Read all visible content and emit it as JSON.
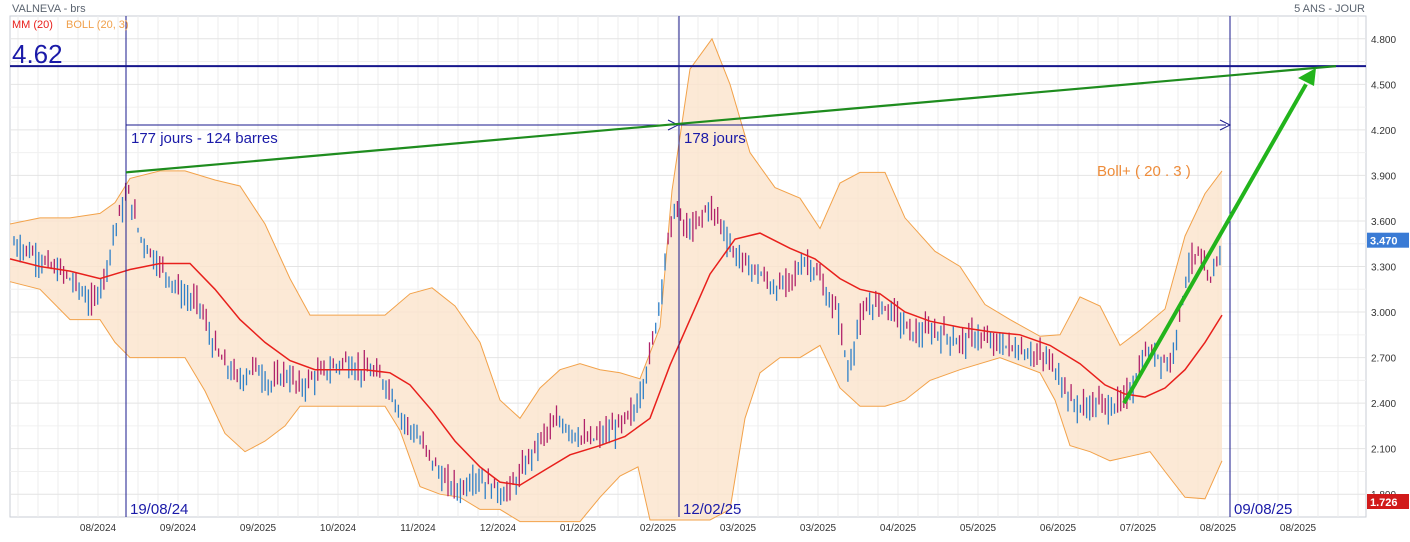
{
  "header": {
    "symbol_label": "VALNEVA - brs",
    "period_label": "5 ANS - JOUR",
    "legend": [
      {
        "label": "MM (20)",
        "color": "#e8201c"
      },
      {
        "label": "BOLL (20, 3)",
        "color": "#f0a04b"
      }
    ]
  },
  "chart_data": {
    "type": "ohlc",
    "ylim": [
      1.65,
      4.95
    ],
    "y_ticks": [
      "4.800",
      "4.500",
      "4.200",
      "3.900",
      "3.600",
      "3.300",
      "3.000",
      "2.700",
      "2.400",
      "2.100",
      "1.800"
    ],
    "x_ticks": [
      "08/2024",
      "09/2024",
      "09/2025",
      "10/2024",
      "11/2024",
      "12/2024",
      "01/2025",
      "02/2025",
      "03/2025",
      "03/2025",
      "04/2025",
      "05/2025",
      "06/2025",
      "07/2025",
      "08/2025",
      "08/2025"
    ],
    "last_price_label": "3.470",
    "min_price_label": "1.726",
    "last_price_color": "#3a7bd5",
    "min_price_color": "#d11a1a",
    "price_series_key": [
      {
        "x": "08/2024",
        "close": 3.38
      },
      {
        "x": "09/2024",
        "close": 3.1
      },
      {
        "x": "10/2024",
        "close": 2.68
      },
      {
        "x": "11/2024",
        "close": 2.25
      },
      {
        "x": "12/2024",
        "close": 1.86
      },
      {
        "x": "01/2025",
        "close": 2.3
      },
      {
        "x": "02/2025",
        "close": 3.4
      },
      {
        "x": "03/2025",
        "close": 3.25
      },
      {
        "x": "04/2025",
        "close": 2.95
      },
      {
        "x": "05/2025",
        "close": 2.82
      },
      {
        "x": "06/2025",
        "close": 2.42
      },
      {
        "x": "07/2025",
        "close": 2.62
      },
      {
        "x": "08/2025",
        "close": 3.47
      }
    ],
    "ma20": [
      {
        "x": "08/2024",
        "y": 3.32
      },
      {
        "x": "09/2024",
        "y": 3.15
      },
      {
        "x": "10/2024",
        "y": 2.65
      },
      {
        "x": "11/2024",
        "y": 2.35
      },
      {
        "x": "12/2024",
        "y": 1.9
      },
      {
        "x": "01/2025",
        "y": 2.1
      },
      {
        "x": "02/2025",
        "y": 2.85
      },
      {
        "x": "03/2025",
        "y": 3.45
      },
      {
        "x": "04/2025",
        "y": 3.0
      },
      {
        "x": "05/2025",
        "y": 2.88
      },
      {
        "x": "06/2025",
        "y": 2.72
      },
      {
        "x": "07/2025",
        "y": 2.42
      },
      {
        "x": "08/2025",
        "y": 2.98
      }
    ],
    "annotations": {
      "level_value": "4.62",
      "level_price": 4.62,
      "period1_label": "177 jours - 124 barres",
      "period2_label": "178 jours",
      "date1_label": "19/08/24",
      "date2_label": "12/02/25",
      "date3_label": "09/08/25",
      "boll_plus_label": "Boll+ ( 20 . 3 )"
    },
    "grid": true
  }
}
